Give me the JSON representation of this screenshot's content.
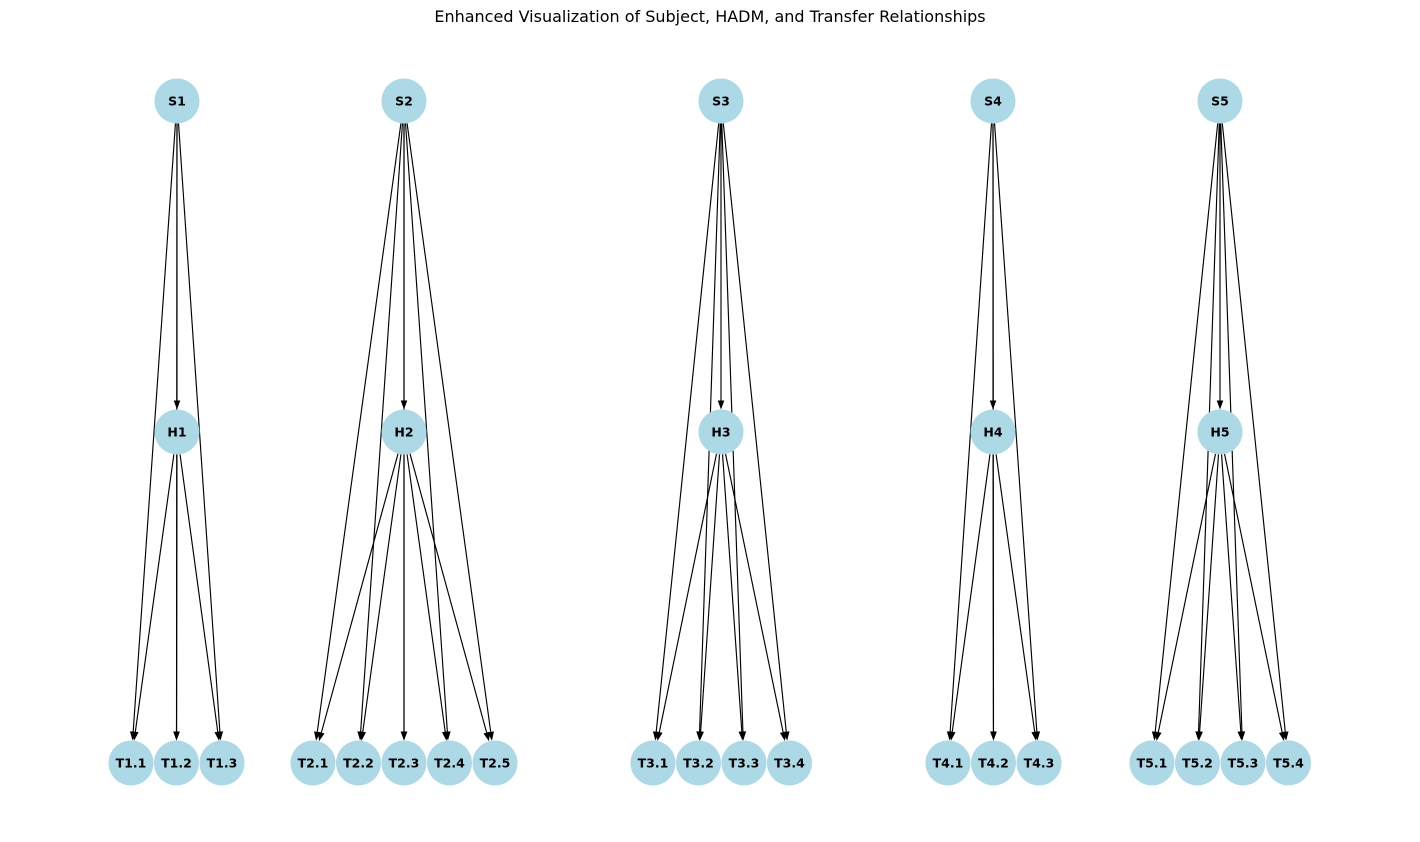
{
  "title": "Enhanced Visualization of Subject, HADM, and Transfer Relationships",
  "colors": {
    "node": "#add8e6",
    "edge": "#000000",
    "text": "#000000"
  },
  "groups": [
    {
      "subject": "S1",
      "hadm": "H1",
      "transfers": [
        "T1.1",
        "T1.2",
        "T1.3"
      ]
    },
    {
      "subject": "S2",
      "hadm": "H2",
      "transfers": [
        "T2.1",
        "T2.2",
        "T2.3",
        "T2.4",
        "T2.5"
      ]
    },
    {
      "subject": "S3",
      "hadm": "H3",
      "transfers": [
        "T3.1",
        "T3.2",
        "T3.3",
        "T3.4"
      ]
    },
    {
      "subject": "S4",
      "hadm": "H4",
      "transfers": [
        "T4.1",
        "T4.2",
        "T4.3"
      ]
    },
    {
      "subject": "S5",
      "hadm": "H5",
      "transfers": [
        "T5.1",
        "T5.2",
        "T5.3",
        "T5.4"
      ]
    }
  ]
}
